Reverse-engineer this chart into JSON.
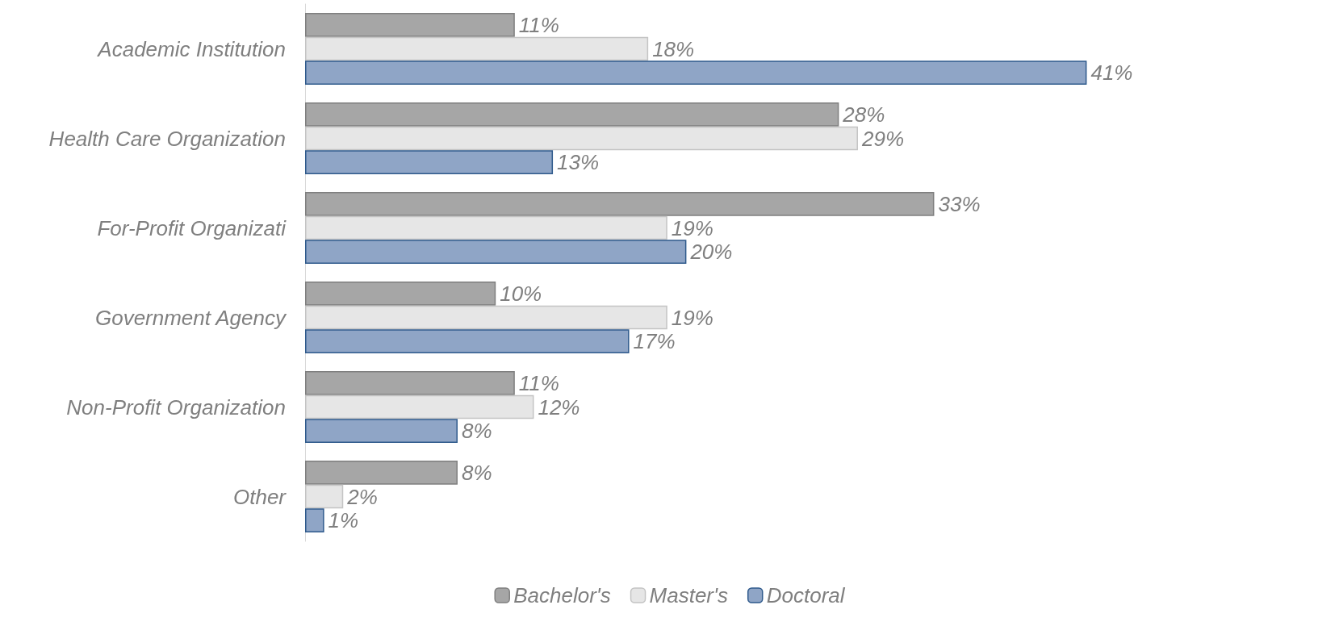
{
  "chart_data": {
    "type": "bar",
    "orientation": "horizontal",
    "categories": [
      "Academic Institution",
      "Health Care Organization",
      "For-Profit Organizati",
      "Government Agency",
      "Non-Profit Organization",
      "Other"
    ],
    "series": [
      {
        "name": "Bachelor's",
        "color": "#a6a6a6",
        "values": [
          11,
          28,
          33,
          10,
          11,
          8
        ],
        "value_labels": [
          "11%",
          "28%",
          "33%",
          "10%",
          "11%",
          "8%"
        ]
      },
      {
        "name": "Master's",
        "color": "#e6e6e6",
        "values": [
          18,
          29,
          19,
          19,
          12,
          2
        ],
        "value_labels": [
          "18%",
          "29%",
          "19%",
          "19%",
          "12%",
          "2%"
        ]
      },
      {
        "name": "Doctoral",
        "color": "#8fa5c6",
        "values": [
          41,
          13,
          20,
          17,
          8,
          1
        ],
        "value_labels": [
          "41%",
          "13%",
          "20%",
          "17%",
          "8%",
          "1%"
        ]
      }
    ],
    "legend": "bottom",
    "grid": false
  }
}
